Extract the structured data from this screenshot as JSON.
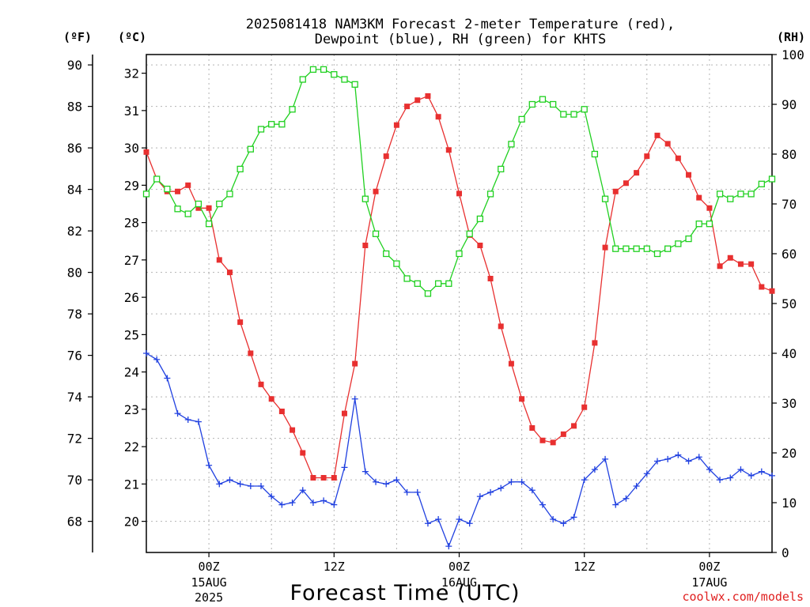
{
  "chart_data": {
    "type": "line",
    "title_line1": "2025081418 NAM3KM Forecast 2-meter Temperature (red),",
    "title_line2": "Dewpoint (blue), RH (green) for KHTS",
    "xlabel": "Forecast Time (UTC)",
    "credit": "coolwx.com/models",
    "left_unit_f": "(ºF)",
    "left_unit_c": "(ºC)",
    "right_unit": "(RH)",
    "x_start_hour": 0,
    "x_end_hour": 60,
    "ylim_f": [
      66.5,
      90.5
    ],
    "ylim_rh": [
      0,
      100
    ],
    "ticks_f": [
      68,
      70,
      72,
      74,
      76,
      78,
      80,
      82,
      84,
      86,
      88,
      90
    ],
    "ticks_c": [
      20,
      21,
      22,
      23,
      24,
      25,
      26,
      27,
      28,
      29,
      30,
      31,
      32
    ],
    "ticks_rh": [
      0,
      10,
      20,
      30,
      40,
      50,
      60,
      70,
      80,
      90,
      100
    ],
    "x_ticks": [
      {
        "hour": 6,
        "label": "00Z",
        "date": "15AUG",
        "year": "2025"
      },
      {
        "hour": 18,
        "label": "12Z",
        "date": "",
        "year": ""
      },
      {
        "hour": 30,
        "label": "00Z",
        "date": "16AUG",
        "year": ""
      },
      {
        "hour": 42,
        "label": "12Z",
        "date": "",
        "year": ""
      },
      {
        "hour": 54,
        "label": "00Z",
        "date": "17AUG",
        "year": ""
      }
    ],
    "series": [
      {
        "name": "Temperature",
        "unit": "ºF",
        "color": "#e83030",
        "marker": "filled-square",
        "values": [
          85.8,
          84.5,
          83.9,
          83.9,
          84.2,
          83.1,
          83.1,
          80.6,
          80.0,
          77.6,
          76.1,
          74.6,
          73.9,
          73.3,
          72.4,
          71.3,
          70.1,
          70.1,
          70.1,
          73.2,
          75.6,
          81.3,
          83.9,
          85.6,
          87.1,
          88.0,
          88.3,
          88.5,
          87.5,
          85.9,
          83.8,
          81.8,
          81.3,
          79.7,
          77.4,
          75.6,
          73.9,
          72.5,
          71.9,
          71.8,
          72.2,
          72.6,
          73.5,
          76.6,
          81.2,
          83.9,
          84.3,
          84.8,
          85.6,
          86.6,
          86.2,
          85.5,
          84.7,
          83.6,
          83.1,
          80.3,
          80.7,
          80.4,
          80.4,
          79.3,
          79.1
        ],
        "hours_start": 0
      },
      {
        "name": "Dewpoint",
        "unit": "ºF",
        "color": "#2040e0",
        "marker": "plus",
        "values": [
          76.1,
          75.8,
          74.9,
          73.2,
          72.9,
          72.8,
          70.7,
          69.8,
          70.0,
          69.8,
          69.7,
          69.7,
          69.2,
          68.8,
          68.9,
          69.5,
          68.9,
          69.0,
          68.8,
          70.6,
          73.9,
          70.4,
          69.9,
          69.8,
          70.0,
          69.4,
          69.4,
          67.9,
          68.1,
          66.8,
          68.1,
          67.9,
          69.2,
          69.4,
          69.6,
          69.9,
          69.9,
          69.5,
          68.8,
          68.1,
          67.9,
          68.2,
          70.0,
          70.5,
          71.0,
          68.8,
          69.1,
          69.7,
          70.3,
          70.9,
          71.0,
          71.2,
          70.9,
          71.1,
          70.5,
          70.0,
          70.1,
          70.5,
          70.2,
          70.4,
          70.2
        ],
        "hours_start": 0
      },
      {
        "name": "RH",
        "unit": "%",
        "color": "#20d020",
        "marker": "open-square",
        "values": [
          72,
          75,
          73,
          69,
          68,
          70,
          66,
          70,
          72,
          77,
          81,
          85,
          86,
          86,
          89,
          95,
          97,
          97,
          96,
          95,
          94,
          71,
          64,
          60,
          58,
          55,
          54,
          52,
          54,
          54,
          60,
          64,
          67,
          72,
          77,
          82,
          87,
          90,
          91,
          90,
          88,
          88,
          89,
          80,
          71,
          61,
          61,
          61,
          61,
          60,
          61,
          62,
          63,
          66,
          66,
          72,
          71,
          72,
          72,
          74,
          75
        ],
        "hours_start": 0
      }
    ]
  }
}
